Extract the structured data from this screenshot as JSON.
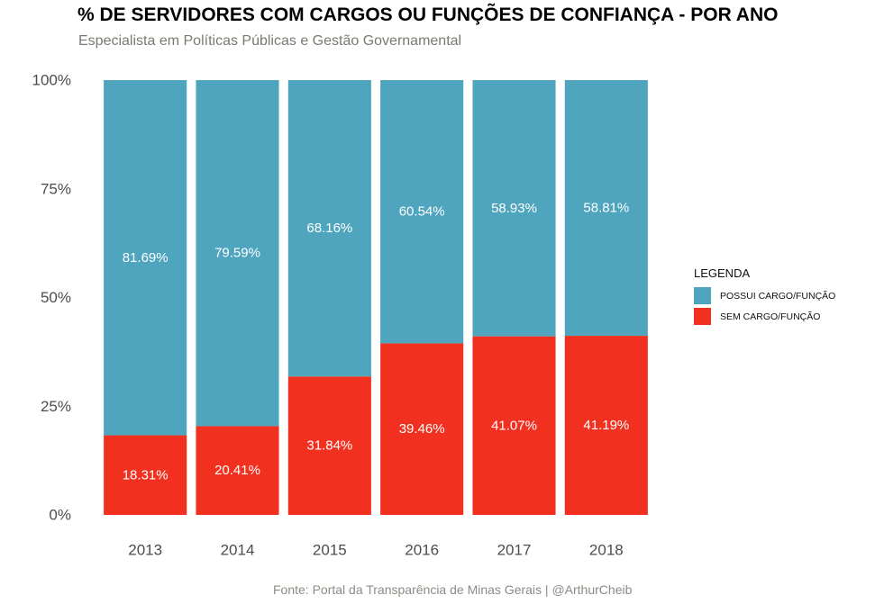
{
  "title": "% DE SERVIDORES COM CARGOS OU FUNÇÕES DE CONFIANÇA - POR ANO",
  "subtitle": "Especialista em Políticas Públicas e Gestão Governamental",
  "caption": "Fonte: Portal da Transparência de Minas Gerais | @ArthurCheib",
  "colors": {
    "possui": "#4ea5bd",
    "sem": "#f2301f",
    "axis_text": "#4d4d4d",
    "bar_label": "#ffffff"
  },
  "legend": {
    "title": "LEGENDA",
    "placement": "right",
    "items": [
      {
        "label": "POSSUI CARGO/FUNÇÃO",
        "color": "#4ea5bd"
      },
      {
        "label": "SEM CARGO/FUNÇÃO",
        "color": "#f2301f"
      }
    ]
  },
  "chart_data": {
    "type": "bar",
    "stacked": true,
    "percent": true,
    "title": "% DE SERVIDORES COM CARGOS OU FUNÇÕES DE CONFIANÇA - POR ANO",
    "subtitle": "Especialista em Políticas Públicas e Gestão Governamental",
    "xlabel": "",
    "ylabel": "",
    "ylim": [
      0,
      100
    ],
    "yticks": [
      "0%",
      "25%",
      "50%",
      "75%",
      "100%"
    ],
    "yticks_values": [
      0,
      25,
      50,
      75,
      100
    ],
    "grid": false,
    "categories": [
      "2013",
      "2014",
      "2015",
      "2016",
      "2017",
      "2018"
    ],
    "series": [
      {
        "name": "SEM CARGO/FUNÇÃO",
        "color": "#f2301f",
        "values": [
          18.31,
          20.41,
          31.84,
          39.46,
          41.07,
          41.19
        ],
        "labels": [
          "18.31%",
          "20.41%",
          "31.84%",
          "39.46%",
          "41.07%",
          "41.19%"
        ]
      },
      {
        "name": "POSSUI CARGO/FUNÇÃO",
        "color": "#4ea5bd",
        "values": [
          81.69,
          79.59,
          68.16,
          60.54,
          58.93,
          58.81
        ],
        "labels": [
          "81.69%",
          "79.59%",
          "68.16%",
          "60.54%",
          "58.93%",
          "58.81%"
        ]
      }
    ]
  }
}
